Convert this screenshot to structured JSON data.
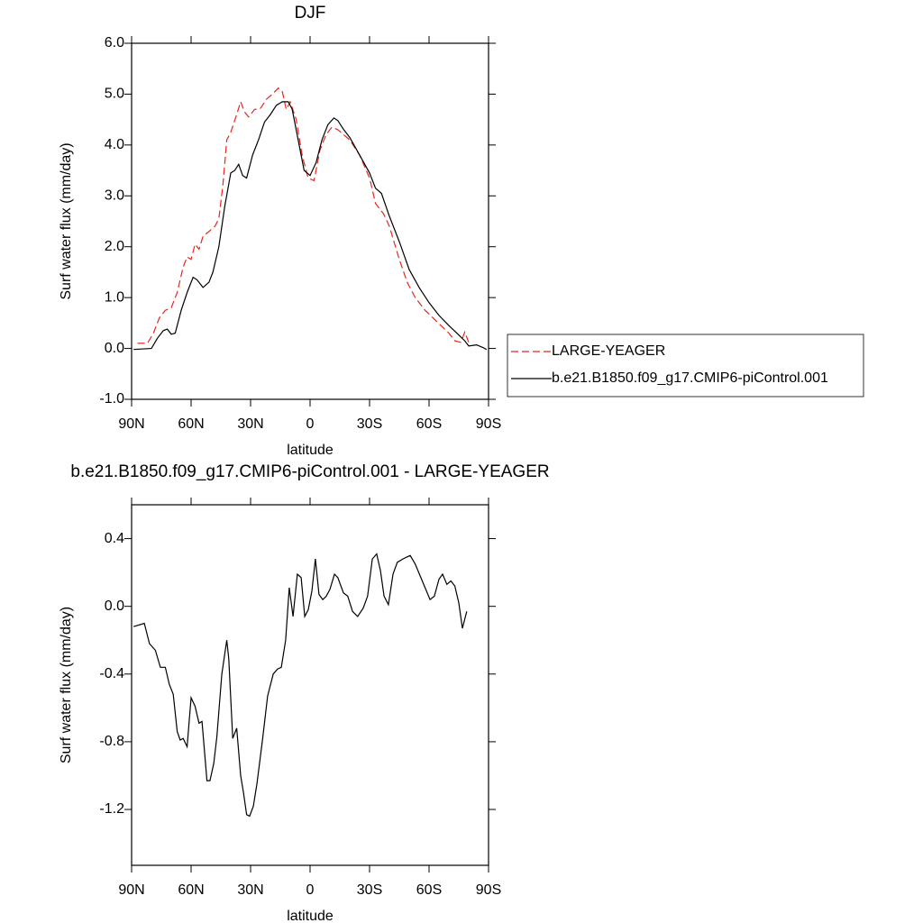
{
  "chart_data": [
    {
      "type": "line",
      "title": "DJF",
      "xlabel": "latitude",
      "ylabel": "Surf water flux (mm/day)",
      "xlim": [
        90,
        -90
      ],
      "xticks": [
        {
          "value": 90,
          "label": "90N"
        },
        {
          "value": 60,
          "label": "60N"
        },
        {
          "value": 30,
          "label": "30N"
        },
        0,
        {
          "value": -30,
          "label": "30S"
        },
        {
          "value": -60,
          "label": "60S"
        },
        {
          "value": -90,
          "label": "90S"
        }
      ],
      "ylim": [
        -1,
        6
      ],
      "yticks": [
        {
          "value": -1,
          "label": "-1.0"
        },
        {
          "value": 0,
          "label": "0.0"
        },
        {
          "value": 1,
          "label": "1.0"
        },
        {
          "value": 2,
          "label": "2.0"
        },
        {
          "value": 3,
          "label": "3.0"
        },
        {
          "value": 4,
          "label": "4.0"
        },
        {
          "value": 5,
          "label": "5.0"
        },
        {
          "value": 6,
          "label": "6.0"
        }
      ],
      "legend": "right",
      "series": [
        {
          "name": "LARGE-YEAGER",
          "color": "#e8261f",
          "style": "dashed",
          "x": [
            87,
            82,
            79,
            76,
            73,
            70,
            67,
            64,
            62,
            60,
            58,
            56,
            54,
            51,
            48,
            46,
            44,
            42,
            40,
            37,
            35,
            33,
            31,
            28,
            25,
            22,
            19,
            16,
            14,
            12,
            10,
            7,
            4,
            1,
            -2,
            -5,
            -8,
            -11,
            -14,
            -17,
            -20,
            -25,
            -30,
            -33,
            -37,
            -40,
            -45,
            -49,
            -53,
            -58,
            -62,
            -66,
            -70,
            -73,
            -76,
            -78,
            -80
          ],
          "values": [
            0.1,
            0.1,
            0.3,
            0.6,
            0.75,
            0.8,
            1.1,
            1.6,
            1.8,
            1.75,
            2.05,
            1.95,
            2.2,
            2.3,
            2.4,
            2.55,
            3.2,
            4.1,
            4.25,
            4.6,
            4.85,
            4.65,
            4.55,
            4.7,
            4.72,
            4.9,
            5.0,
            5.12,
            5.05,
            4.7,
            4.85,
            4.5,
            3.8,
            3.35,
            3.3,
            3.9,
            4.2,
            4.35,
            4.3,
            4.2,
            4.1,
            3.8,
            3.35,
            2.85,
            2.65,
            2.4,
            1.75,
            1.3,
            1.0,
            0.75,
            0.6,
            0.45,
            0.3,
            0.15,
            0.12,
            0.32,
            0.12
          ]
        },
        {
          "name": "b.e21.B1850.f09_g17.CMIP6-piControl.001",
          "color": "#000000",
          "style": "solid",
          "x": [
            89,
            80,
            77,
            74,
            72,
            70,
            68,
            65,
            62,
            59,
            57,
            54,
            51,
            49,
            46,
            43,
            40,
            38,
            36,
            34,
            32,
            29,
            26,
            23,
            20,
            17,
            14,
            11,
            9,
            6,
            3,
            0,
            -3,
            -6,
            -9,
            -12,
            -14,
            -17,
            -20,
            -25,
            -30,
            -33,
            -36,
            -40,
            -45,
            -50,
            -55,
            -60,
            -65,
            -70,
            -74,
            -78,
            -80,
            -84,
            -87,
            -89
          ],
          "values": [
            -0.02,
            0.0,
            0.2,
            0.35,
            0.38,
            0.28,
            0.3,
            0.75,
            1.1,
            1.4,
            1.35,
            1.2,
            1.3,
            1.5,
            2.0,
            2.8,
            3.45,
            3.5,
            3.62,
            3.4,
            3.35,
            3.8,
            4.1,
            4.45,
            4.6,
            4.78,
            4.85,
            4.85,
            4.7,
            4.1,
            3.5,
            3.4,
            3.65,
            4.1,
            4.4,
            4.53,
            4.48,
            4.3,
            4.15,
            3.8,
            3.45,
            3.15,
            3.05,
            2.6,
            2.1,
            1.55,
            1.2,
            0.9,
            0.65,
            0.45,
            0.3,
            0.15,
            0.05,
            0.07,
            0.02,
            -0.02
          ]
        }
      ]
    },
    {
      "type": "line",
      "title": "b.e21.B1850.f09_g17.CMIP6-piControl.001 - LARGE-YEAGER",
      "xlabel": "latitude",
      "ylabel": "Surf water flux (mm/day)",
      "xlim": [
        90,
        -90
      ],
      "xticks": [
        {
          "value": 90,
          "label": "90N"
        },
        {
          "value": 60,
          "label": "60N"
        },
        {
          "value": 30,
          "label": "30N"
        },
        0,
        {
          "value": -30,
          "label": "30S"
        },
        {
          "value": -60,
          "label": "60S"
        },
        {
          "value": -90,
          "label": "90S"
        }
      ],
      "ylim": [
        -1.53,
        0.6
      ],
      "yticks": [
        0.4,
        {
          "value": 0,
          "label": "0.0"
        },
        -0.4,
        -0.8,
        -1.2
      ],
      "color": "#000000",
      "x": [
        89,
        83.6,
        81,
        78,
        75.5,
        73,
        71,
        69,
        67,
        65.5,
        64,
        62,
        60,
        58,
        56,
        54.5,
        52,
        50.5,
        48.6,
        47,
        44.5,
        42,
        41,
        39,
        37,
        35,
        33.6,
        32,
        30.5,
        28.6,
        26.8,
        24,
        21.4,
        18.6,
        16.4,
        14.5,
        12.3,
        10.5,
        8.6,
        6.4,
        4.5,
        2.7,
        0.9,
        -0.9,
        -2.7,
        -4.5,
        -6.4,
        -8.2,
        -10,
        -12.3,
        -14,
        -16.8,
        -19,
        -21.4,
        -24,
        -26.8,
        -29,
        -31.4,
        -33.6,
        -35.5,
        -37.3,
        -39.5,
        -41.8,
        -44,
        -46.8,
        -48.6,
        -50.5,
        -53,
        -55.5,
        -58,
        -60.5,
        -62.7,
        -65,
        -66.8,
        -69,
        -71,
        -73,
        -75,
        -76.8,
        -79
      ],
      "values": [
        -0.12,
        -0.1,
        -0.22,
        -0.26,
        -0.36,
        -0.36,
        -0.46,
        -0.52,
        -0.74,
        -0.79,
        -0.78,
        -0.83,
        -0.54,
        -0.59,
        -0.69,
        -0.68,
        -1.03,
        -1.03,
        -0.93,
        -0.77,
        -0.4,
        -0.2,
        -0.31,
        -0.78,
        -0.72,
        -1.0,
        -1.1,
        -1.23,
        -1.24,
        -1.18,
        -1.05,
        -0.79,
        -0.53,
        -0.4,
        -0.37,
        -0.36,
        -0.2,
        0.11,
        -0.06,
        0.19,
        0.17,
        -0.06,
        -0.02,
        0.09,
        0.28,
        0.07,
        0.04,
        0.06,
        0.1,
        0.19,
        0.17,
        0.08,
        0.06,
        -0.03,
        -0.06,
        -0.01,
        0.06,
        0.28,
        0.31,
        0.21,
        0.06,
        0.01,
        0.19,
        0.26,
        0.28,
        0.29,
        0.3,
        0.25,
        0.18,
        0.11,
        0.04,
        0.06,
        0.16,
        0.19,
        0.13,
        0.15,
        0.12,
        0.02,
        -0.13,
        -0.03
      ]
    }
  ]
}
